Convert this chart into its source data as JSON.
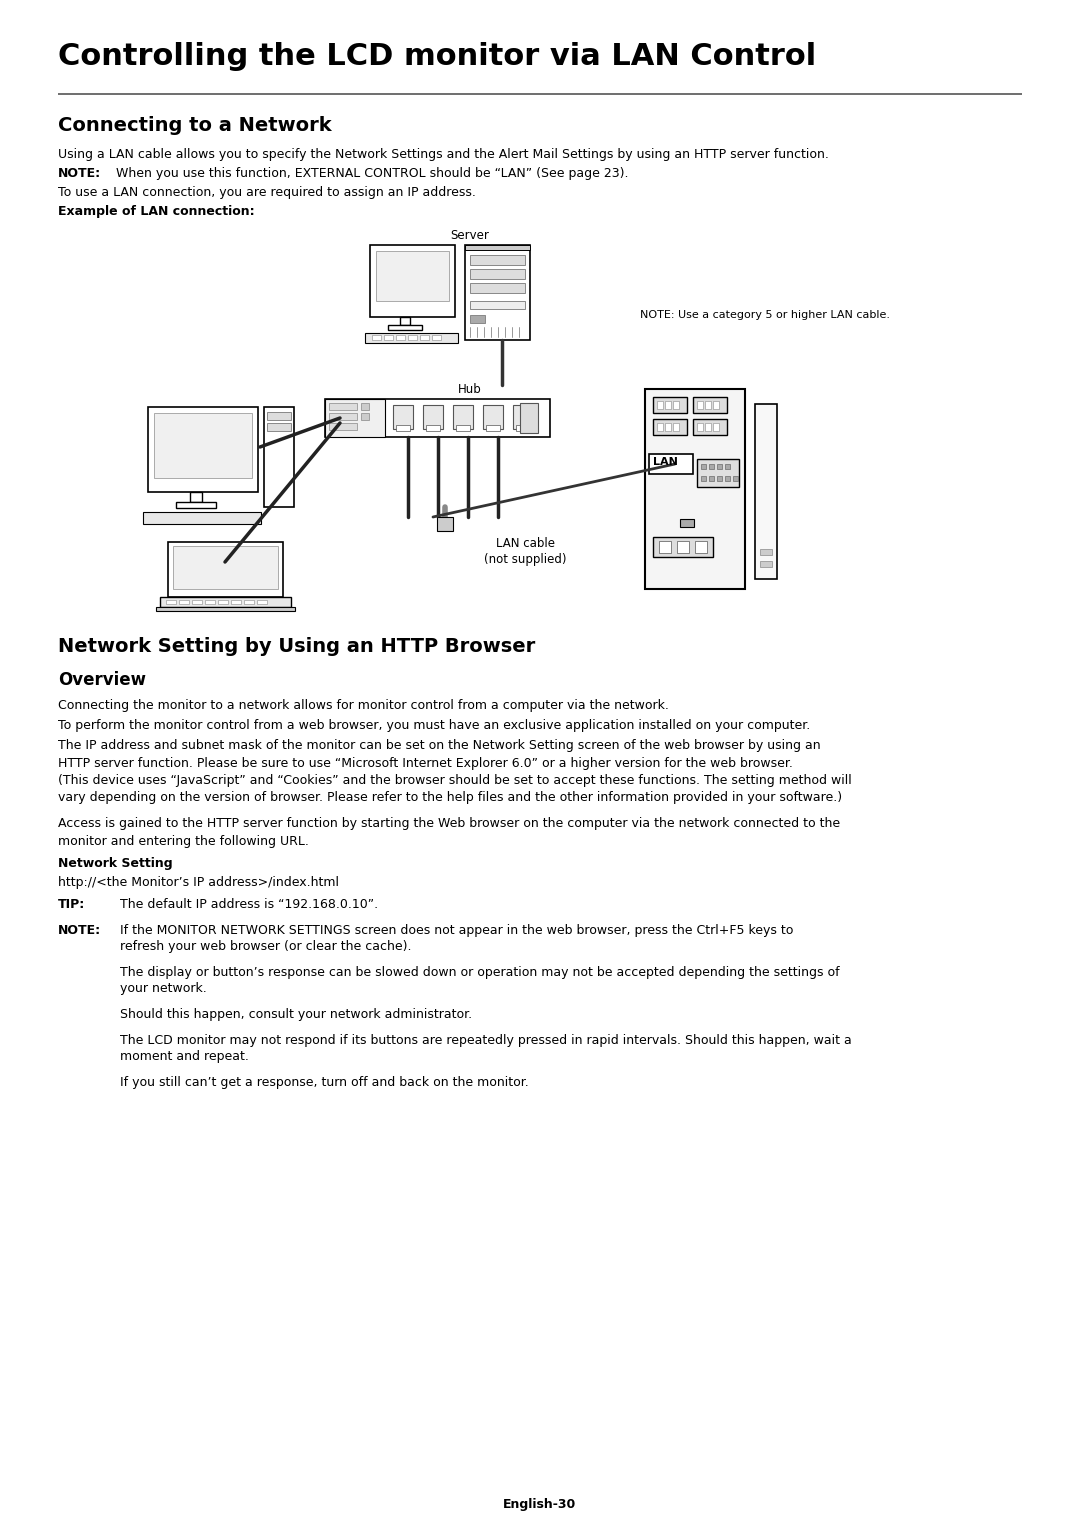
{
  "bg_color": "#ffffff",
  "text_color": "#000000",
  "main_title": "Controlling the LCD monitor via LAN Control",
  "s1_title": "Connecting to a Network",
  "s1_p1": "Using a LAN cable allows you to specify the Network Settings and the Alert Mail Settings by using an HTTP server function.",
  "note1_bold": "NOTE:",
  "note1_text": "  When you use this function, EXTERNAL CONTROL should be “LAN” (See page 23).",
  "s1_p2": "To use a LAN connection, you are required to assign an IP address.",
  "s1_example": "Example of LAN connection:",
  "diag_server": "Server",
  "diag_note": "NOTE: Use a category 5 or higher LAN cable.",
  "diag_hub": "Hub",
  "diag_lan": "LAN",
  "diag_lan_cable": "LAN cable\n(not supplied)",
  "s2_title": "Network Setting by Using an HTTP Browser",
  "s2_overview": "Overview",
  "s2_p1": "Connecting the monitor to a network allows for monitor control from a computer via the network.",
  "s2_p2": "To perform the monitor control from a web browser, you must have an exclusive application installed on your computer.",
  "s2_p3": "The IP address and subnet mask of the monitor can be set on the Network Setting screen of the web browser by using an\nHTTP server function. Please be sure to use “Microsoft Internet Explorer 6.0” or a higher version for the web browser.\n(This device uses “JavaScript” and “Cookies” and the browser should be set to accept these functions. The setting method will\nvary depending on the version of browser. Please refer to the help files and the other information provided in your software.)",
  "s2_p4": "Access is gained to the HTTP server function by starting the Web browser on the computer via the network connected to the\nmonitor and entering the following URL.",
  "s2_net_bold": "Network Setting",
  "s2_url": "http://<the Monitor’s IP address>/index.html",
  "s2_tip_bold": "TIP:",
  "s2_tip": "The default IP address is “192.168.0.10”.",
  "s2_note_bold": "NOTE:",
  "s2_note1a": "If the MONITOR NETWORK SETTINGS screen does not appear in the web browser, press the Ctrl+F5 keys to",
  "s2_note1b": "refresh your web browser (or clear the cache).",
  "s2_note2a": "The display or button’s response can be slowed down or operation may not be accepted depending the settings of",
  "s2_note2b": "your network.",
  "s2_note3": "Should this happen, consult your network administrator.",
  "s2_note4a": "The LCD monitor may not respond if its buttons are repeatedly pressed in rapid intervals. Should this happen, wait a",
  "s2_note4b": "moment and repeat.",
  "s2_note5": "If you still can’t get a response, turn off and back on the monitor.",
  "footer": "English-30"
}
